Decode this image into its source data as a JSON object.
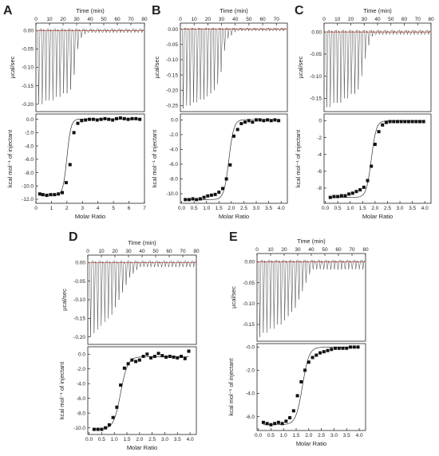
{
  "chart_data": [
    {
      "type": "scatter",
      "panel": "A",
      "top_xlabel": "Time (min)",
      "top_ylabel": "µcal/sec",
      "top_xticks": [
        0,
        10,
        20,
        30,
        40,
        50,
        60,
        70,
        80
      ],
      "top_xlim": [
        0,
        80
      ],
      "top_yticks": [
        0.0,
        -0.05,
        -0.1,
        -0.15,
        -0.2
      ],
      "top_ylim": [
        -0.22,
        0.02
      ],
      "peaks": {
        "count": 30,
        "t_start": 2,
        "t_end": 78,
        "depths": [
          -0.2,
          -0.2,
          -0.19,
          -0.19,
          -0.19,
          -0.18,
          -0.18,
          -0.17,
          -0.17,
          -0.16,
          -0.12,
          -0.05,
          -0.02,
          -0.01
        ]
      },
      "xlabel": "Molar Ratio",
      "ylabel": "kcal mol⁻¹ of injectant",
      "xticks": [
        0,
        1,
        2,
        3,
        4,
        5,
        6,
        7
      ],
      "xlim": [
        0,
        7
      ],
      "yticks": [
        0.0,
        -2.0,
        -4.0,
        -6.0,
        -8.0,
        -10.0,
        -12.0
      ],
      "ylim": [
        -12.6,
        0.8
      ],
      "fit": {
        "top": 0.05,
        "bottom": -11.4,
        "midpoint": 2.0,
        "width": 0.13
      },
      "x": [
        0.25,
        0.45,
        0.7,
        0.95,
        1.2,
        1.45,
        1.7,
        1.95,
        2.2,
        2.45,
        2.7,
        2.95,
        3.2,
        3.45,
        3.7,
        3.95,
        4.2,
        4.45,
        4.7,
        4.95,
        5.2,
        5.45,
        5.7,
        5.95,
        6.2,
        6.45,
        6.7
      ],
      "y": [
        -11.2,
        -11.3,
        -11.4,
        -11.3,
        -11.3,
        -11.2,
        -11.0,
        -9.5,
        -6.8,
        -2.0,
        -0.6,
        -0.2,
        -0.1,
        0.0,
        0.0,
        -0.1,
        0.0,
        0.1,
        0.0,
        -0.1,
        0.1,
        0.2,
        0.1,
        0.0,
        0.1,
        0.1,
        0.0
      ]
    },
    {
      "type": "scatter",
      "panel": "B",
      "top_xlabel": "Time (min)",
      "top_ylabel": "µcal/sec",
      "top_xticks": [
        0,
        10,
        20,
        30,
        40,
        50,
        60,
        70
      ],
      "top_xlim": [
        0,
        78
      ],
      "top_yticks": [
        0.0,
        -0.05,
        -0.1,
        -0.15,
        -0.2,
        -0.25
      ],
      "top_ylim": [
        -0.27,
        0.02
      ],
      "peaks": {
        "count": 30,
        "t_start": 2,
        "t_end": 75,
        "depths": [
          -0.26,
          -0.25,
          -0.25,
          -0.24,
          -0.24,
          -0.23,
          -0.23,
          -0.22,
          -0.21,
          -0.2,
          -0.18,
          -0.14,
          -0.07,
          -0.03,
          -0.02,
          -0.01
        ]
      },
      "xlabel": "Molar Ratio",
      "ylabel": "kcal mol⁻¹ of injectant",
      "xticks": [
        0.0,
        0.5,
        1.0,
        1.5,
        2.0,
        2.5,
        3.0,
        3.5,
        4.0
      ],
      "xlim": [
        -0.05,
        4.25
      ],
      "yticks": [
        0.0,
        -2.0,
        -4.0,
        -6.0,
        -8.0,
        -10.0
      ],
      "ylim": [
        -11.3,
        0.8
      ],
      "fit": {
        "top": 0.05,
        "bottom": -10.8,
        "midpoint": 1.9,
        "width": 0.1
      },
      "x": [
        0.15,
        0.3,
        0.45,
        0.6,
        0.75,
        0.9,
        1.05,
        1.2,
        1.35,
        1.5,
        1.65,
        1.8,
        1.95,
        2.1,
        2.25,
        2.4,
        2.55,
        2.7,
        2.85,
        3.0,
        3.15,
        3.3,
        3.45,
        3.6,
        3.75,
        3.9
      ],
      "y": [
        -10.8,
        -10.8,
        -10.7,
        -10.8,
        -10.7,
        -10.5,
        -10.3,
        -10.2,
        -10.1,
        -9.8,
        -9.3,
        -8.0,
        -6.1,
        -2.2,
        -1.3,
        -0.5,
        -0.3,
        -0.1,
        -0.3,
        0.0,
        0.0,
        -0.1,
        0.0,
        -0.1,
        0.0,
        -0.1
      ]
    },
    {
      "type": "scatter",
      "panel": "C",
      "top_xlabel": "Time (min)",
      "top_ylabel": "µcal/sec",
      "top_xticks": [
        0,
        10,
        20,
        30,
        40,
        50,
        60,
        70,
        80
      ],
      "top_xlim": [
        0,
        80
      ],
      "top_yticks": [
        0.0,
        -0.05,
        -0.1,
        -0.15
      ],
      "top_ylim": [
        -0.18,
        0.02
      ],
      "peaks": {
        "count": 30,
        "t_start": 2,
        "t_end": 78,
        "depths": [
          -0.17,
          -0.17,
          -0.16,
          -0.16,
          -0.16,
          -0.15,
          -0.15,
          -0.14,
          -0.14,
          -0.13,
          -0.1,
          -0.06,
          -0.03,
          -0.01
        ]
      },
      "xlabel": "Molar Ratio",
      "ylabel": "kcal mol⁻¹ of injectant",
      "xticks": [
        0.0,
        0.5,
        1.0,
        1.5,
        2.0,
        2.5,
        3.0,
        3.5,
        4.0
      ],
      "xlim": [
        -0.05,
        4.25
      ],
      "yticks": [
        0,
        -2,
        -4,
        -6,
        -8
      ],
      "ylim": [
        -9.8,
        0.8
      ],
      "fit": {
        "top": 0.0,
        "bottom": -9.1,
        "midpoint": 1.85,
        "width": 0.1
      },
      "x": [
        0.2,
        0.35,
        0.5,
        0.65,
        0.8,
        0.95,
        1.1,
        1.25,
        1.4,
        1.55,
        1.7,
        1.85,
        2.0,
        2.15,
        2.3,
        2.45,
        2.6,
        2.75,
        2.9,
        3.05,
        3.2,
        3.35,
        3.5,
        3.65,
        3.8,
        3.95
      ],
      "y": [
        -9.1,
        -9.0,
        -9.0,
        -8.9,
        -8.9,
        -8.7,
        -8.6,
        -8.4,
        -8.2,
        -7.9,
        -7.1,
        -5.4,
        -2.8,
        -1.3,
        -0.5,
        -0.2,
        -0.1,
        -0.1,
        -0.1,
        -0.1,
        -0.1,
        -0.1,
        -0.1,
        -0.1,
        -0.1,
        -0.1
      ]
    },
    {
      "type": "scatter",
      "panel": "D",
      "top_xlabel": "Time (min)",
      "top_ylabel": "µcal/sec",
      "top_xticks": [
        0,
        10,
        20,
        30,
        40,
        50,
        60,
        70,
        80
      ],
      "top_xlim": [
        0,
        80
      ],
      "top_yticks": [
        0.0,
        -0.05,
        -0.1,
        -0.15,
        -0.2
      ],
      "top_ylim": [
        -0.22,
        0.02
      ],
      "peaks": {
        "count": 30,
        "t_start": 2,
        "t_end": 78,
        "depths": [
          -0.2,
          -0.19,
          -0.18,
          -0.17,
          -0.16,
          -0.15,
          -0.14,
          -0.12,
          -0.1,
          -0.08,
          -0.06,
          -0.04,
          -0.03,
          -0.02
        ]
      },
      "xlabel": "Molar Ratio",
      "ylabel": "kcal mol⁻¹ of injectant",
      "xticks": [
        0.0,
        0.5,
        1.0,
        1.5,
        2.0,
        2.5,
        3.0,
        3.5,
        4.0
      ],
      "xlim": [
        -0.05,
        4.25
      ],
      "yticks": [
        0.0,
        -2.0,
        -4.0,
        -6.0,
        -8.0,
        -10.0
      ],
      "ylim": [
        -10.9,
        1.0
      ],
      "fit": {
        "top": -0.35,
        "bottom": -10.2,
        "midpoint": 1.25,
        "width": 0.14
      },
      "x": [
        0.2,
        0.35,
        0.5,
        0.65,
        0.8,
        0.95,
        1.1,
        1.25,
        1.4,
        1.55,
        1.7,
        1.85,
        2.0,
        2.15,
        2.3,
        2.45,
        2.6,
        2.75,
        2.9,
        3.05,
        3.2,
        3.35,
        3.5,
        3.65,
        3.8,
        3.95
      ],
      "y": [
        -10.2,
        -10.2,
        -10.2,
        -10.0,
        -9.6,
        -8.6,
        -7.2,
        -4.2,
        -1.9,
        -1.3,
        -0.8,
        -1.0,
        -0.8,
        -0.3,
        0.0,
        -0.5,
        -0.3,
        0.1,
        -0.2,
        -0.4,
        -0.3,
        -0.4,
        -0.5,
        -0.3,
        -0.6,
        0.4
      ]
    },
    {
      "type": "scatter",
      "panel": "E",
      "top_xlabel": "Time (min)",
      "top_ylabel": "µcal/sec",
      "top_xticks": [
        0,
        10,
        20,
        30,
        40,
        50,
        60,
        70,
        80
      ],
      "top_xlim": [
        0,
        80
      ],
      "top_yticks": [
        0.0,
        -0.05,
        -0.1,
        -0.15
      ],
      "top_ylim": [
        -0.19,
        0.02
      ],
      "peaks": {
        "count": 30,
        "t_start": 2,
        "t_end": 78,
        "depths": [
          -0.18,
          -0.17,
          -0.17,
          -0.16,
          -0.16,
          -0.15,
          -0.15,
          -0.14,
          -0.13,
          -0.12,
          -0.11,
          -0.09,
          -0.07,
          -0.05,
          -0.03
        ]
      },
      "xlabel": "Molar Ratio",
      "ylabel": "kcal mol⁻¹ of injectant",
      "xticks": [
        0.0,
        0.5,
        1.0,
        1.5,
        2.0,
        2.5,
        3.0,
        3.5,
        4.0
      ],
      "xlim": [
        -0.05,
        4.25
      ],
      "yticks": [
        -0.0,
        -2.0,
        -4.0,
        -6.0
      ],
      "ylim": [
        -7.2,
        0.3
      ],
      "fit": {
        "top": 0.0,
        "bottom": -6.7,
        "midpoint": 1.75,
        "width": 0.13
      },
      "x": [
        0.2,
        0.35,
        0.5,
        0.65,
        0.8,
        0.95,
        1.1,
        1.25,
        1.4,
        1.55,
        1.7,
        1.85,
        2.0,
        2.15,
        2.3,
        2.45,
        2.6,
        2.75,
        2.9,
        3.05,
        3.2,
        3.35,
        3.5,
        3.65,
        3.8,
        3.95
      ],
      "y": [
        -6.5,
        -6.6,
        -6.7,
        -6.6,
        -6.5,
        -6.6,
        -6.4,
        -6.1,
        -5.5,
        -4.2,
        -3.0,
        -2.0,
        -1.3,
        -0.9,
        -0.7,
        -0.5,
        -0.4,
        -0.3,
        -0.2,
        -0.1,
        -0.1,
        -0.1,
        -0.1,
        0.0,
        0.0,
        0.0
      ]
    }
  ]
}
